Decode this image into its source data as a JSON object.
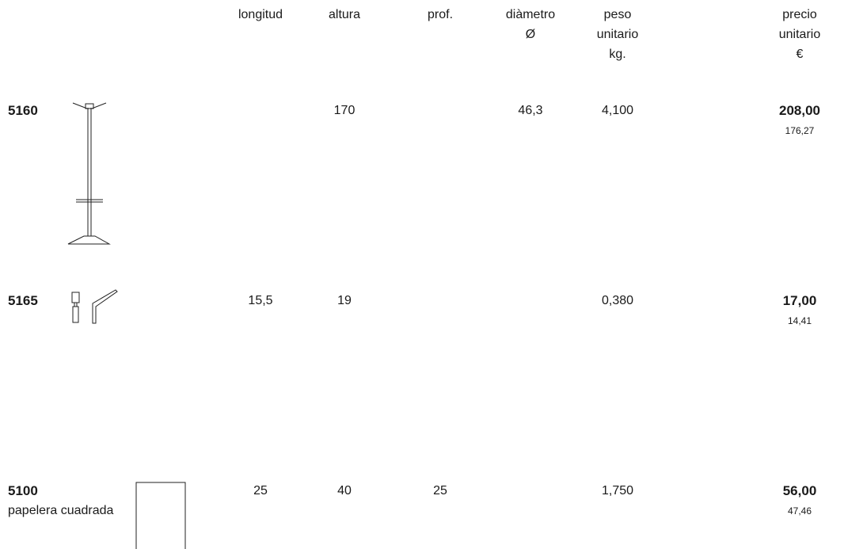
{
  "table": {
    "headers": [
      [
        "longitud"
      ],
      [
        "altura"
      ],
      [
        "prof."
      ],
      [
        "diàmetro",
        "Ø"
      ],
      [
        "peso",
        "unitario",
        "kg."
      ],
      [
        "precio",
        "unitario",
        "€"
      ]
    ],
    "rows": [
      {
        "code": "5160",
        "cells": [
          null,
          "170",
          null,
          "46,3",
          "4,100",
          "208,00"
        ],
        "net": "176,27"
      },
      {
        "code": "5165",
        "cells": [
          "15,5",
          "19",
          null,
          null,
          "0,380",
          "17,00"
        ],
        "net": "14,41"
      },
      {
        "code": "5100",
        "name": "papelera cuadrada",
        "cells": [
          "25",
          "40",
          "25",
          null,
          "1,750",
          "56,00"
        ],
        "net": "47,46"
      }
    ]
  }
}
